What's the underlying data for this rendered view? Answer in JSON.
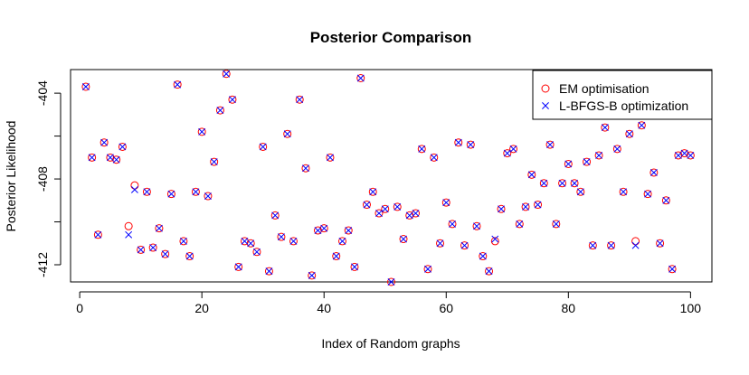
{
  "chart_data": {
    "type": "scatter",
    "title": "Posterior Comparison",
    "xlabel": "Index of Random graphs",
    "ylabel": "Posterior Likelihood",
    "xlim": [
      -1.5,
      103.5
    ],
    "ylim": [
      -412.8,
      -402.9
    ],
    "xticks": [
      0,
      20,
      40,
      60,
      80,
      100
    ],
    "yticks": [
      -412,
      -410,
      -408,
      -406,
      -404
    ],
    "ytick_labels": [
      "-412",
      "",
      "-408",
      "",
      "-404"
    ],
    "legend_position": "top-right",
    "grid": false,
    "x": [
      1,
      2,
      3,
      4,
      5,
      6,
      7,
      8,
      9,
      10,
      11,
      12,
      13,
      14,
      15,
      16,
      17,
      18,
      19,
      20,
      21,
      22,
      23,
      24,
      25,
      26,
      27,
      28,
      29,
      30,
      31,
      32,
      33,
      34,
      35,
      36,
      37,
      38,
      39,
      40,
      41,
      42,
      43,
      44,
      45,
      46,
      47,
      48,
      49,
      50,
      51,
      52,
      53,
      54,
      55,
      56,
      57,
      58,
      59,
      60,
      61,
      62,
      63,
      64,
      65,
      66,
      67,
      68,
      69,
      70,
      71,
      72,
      73,
      74,
      75,
      76,
      77,
      78,
      79,
      80,
      81,
      82,
      83,
      84,
      85,
      86,
      87,
      88,
      89,
      90,
      91,
      92,
      93,
      94,
      95,
      96,
      97,
      98,
      99,
      100
    ],
    "series": [
      {
        "name": "EM optimisation",
        "marker": "circle",
        "color": "#ff0000",
        "values": [
          -403.7,
          -407.0,
          -410.6,
          -406.3,
          -407.0,
          -407.1,
          -406.5,
          -410.2,
          -408.3,
          -411.3,
          -408.6,
          -411.2,
          -410.3,
          -411.5,
          -408.7,
          -403.6,
          -410.9,
          -411.6,
          -408.6,
          -405.8,
          -408.8,
          -407.2,
          -404.8,
          -403.1,
          -404.3,
          -412.1,
          -410.9,
          -411.0,
          -411.4,
          -406.5,
          -412.3,
          -409.7,
          -410.7,
          -405.9,
          -410.9,
          -404.3,
          -407.5,
          -412.5,
          -410.4,
          -410.3,
          -407.0,
          -411.6,
          -410.9,
          -410.4,
          -412.1,
          -403.3,
          -409.2,
          -408.6,
          -409.6,
          -409.4,
          -412.8,
          -409.3,
          -410.8,
          -409.7,
          -409.6,
          -406.6,
          -412.2,
          -407.0,
          -411.0,
          -409.1,
          -410.1,
          -406.3,
          -411.1,
          -406.4,
          -410.2,
          -411.6,
          -412.3,
          -410.9,
          -409.4,
          -406.8,
          -406.6,
          -410.1,
          -409.3,
          -407.8,
          -409.2,
          -408.2,
          -406.4,
          -410.1,
          -408.2,
          -407.3,
          -408.2,
          -408.6,
          -407.2,
          -411.1,
          -406.9,
          -405.6,
          -411.1,
          -406.6,
          -408.6,
          -405.9,
          -410.9,
          -405.5,
          -408.7,
          -407.7,
          -411.0,
          -409.0,
          -412.2,
          -406.9,
          -406.8,
          -406.9
        ]
      },
      {
        "name": "L-BFGS-B optimization",
        "marker": "x",
        "color": "#0000ff",
        "values": [
          -403.7,
          -407.0,
          -410.6,
          -406.3,
          -407.0,
          -407.1,
          -406.5,
          -410.6,
          -408.5,
          -411.3,
          -408.6,
          -411.2,
          -410.3,
          -411.5,
          -408.7,
          -403.6,
          -410.9,
          -411.6,
          -408.6,
          -405.8,
          -408.8,
          -407.2,
          -404.8,
          -403.1,
          -404.3,
          -412.1,
          -410.9,
          -411.0,
          -411.4,
          -406.5,
          -412.3,
          -409.7,
          -410.7,
          -405.9,
          -410.9,
          -404.3,
          -407.5,
          -412.5,
          -410.4,
          -410.3,
          -407.0,
          -411.6,
          -410.9,
          -410.4,
          -412.1,
          -403.3,
          -409.2,
          -408.6,
          -409.6,
          -409.4,
          -412.8,
          -409.3,
          -410.8,
          -409.7,
          -409.6,
          -406.6,
          -412.2,
          -407.0,
          -411.0,
          -409.1,
          -410.1,
          -406.3,
          -411.1,
          -406.4,
          -410.2,
          -411.6,
          -412.3,
          -410.8,
          -409.4,
          -406.8,
          -406.6,
          -410.1,
          -409.3,
          -407.8,
          -409.2,
          -408.2,
          -406.4,
          -410.1,
          -408.2,
          -407.3,
          -408.2,
          -408.6,
          -407.2,
          -411.1,
          -406.9,
          -405.6,
          -411.1,
          -406.6,
          -408.6,
          -405.9,
          -411.1,
          -405.5,
          -408.7,
          -407.7,
          -411.0,
          -409.0,
          -412.2,
          -406.9,
          -406.8,
          -406.9
        ]
      }
    ]
  }
}
